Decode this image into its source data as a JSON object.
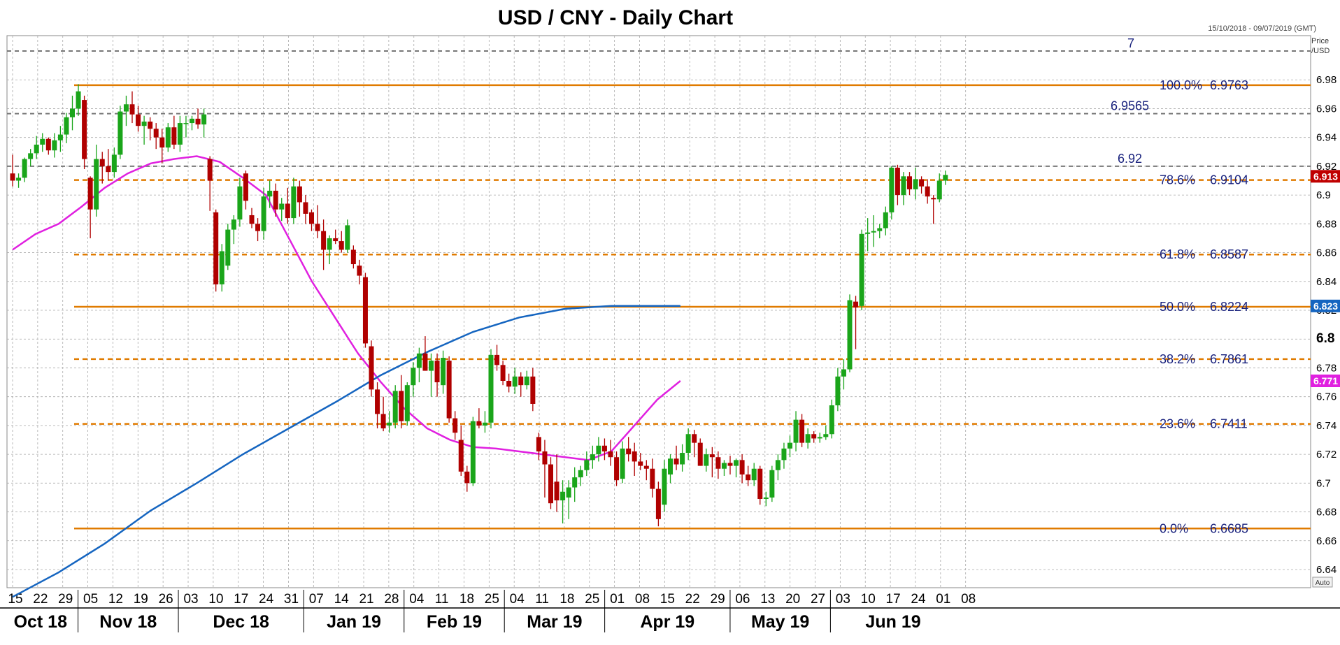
{
  "chart_data": {
    "type": "candlestick",
    "title": "USD / CNY - Daily Chart",
    "date_range": "15/10/2018 - 09/07/2019 (GMT)",
    "price_axis_label": [
      "Price",
      "/USD"
    ],
    "auto_label": "Auto",
    "ylim": [
      6.63,
      7.0
    ],
    "yticks": [
      "6.98",
      "6.96",
      "6.94",
      "6.92",
      "6.9",
      "6.88",
      "6.86",
      "6.84",
      "6.82",
      "6.8",
      "6.78",
      "6.76",
      "6.74",
      "6.72",
      "6.7",
      "6.68",
      "6.66",
      "6.64"
    ],
    "x_day_labels": [
      "15",
      "22",
      "29",
      "05",
      "12",
      "19",
      "26",
      "03",
      "10",
      "17",
      "24",
      "31",
      "07",
      "14",
      "21",
      "28",
      "04",
      "11",
      "18",
      "25",
      "04",
      "11",
      "18",
      "25",
      "01",
      "08",
      "15",
      "22",
      "29",
      "06",
      "13",
      "20",
      "27",
      "03",
      "10",
      "17",
      "24",
      "01",
      "08"
    ],
    "x_month_labels": [
      "Oct 18",
      "Nov 18",
      "Dec 18",
      "Jan 19",
      "Feb 19",
      "Mar 19",
      "Apr 19",
      "May 19",
      "Jun 19"
    ],
    "fibonacci_levels": [
      {
        "label": "100.0%",
        "value": "6.9763"
      },
      {
        "label": "78.6%",
        "value": "6.9104"
      },
      {
        "label": "61.8%",
        "value": "6.8587"
      },
      {
        "label": "50.0%",
        "value": "6.8224"
      },
      {
        "label": "38.2%",
        "value": "6.7861"
      },
      {
        "label": "23.6%",
        "value": "6.7411"
      },
      {
        "label": "0.0%",
        "value": "6.6685"
      }
    ],
    "horizontal_levels": [
      {
        "label": "7",
        "value": "7"
      },
      {
        "label": "6.9565",
        "value": "6.9565"
      },
      {
        "label": "6.92",
        "value": "6.92"
      }
    ],
    "price_tags": [
      {
        "label": "6.913",
        "value": 6.913,
        "color": "#c00000"
      },
      {
        "label": "6.823",
        "value": 6.823,
        "color": "#1565c0"
      },
      {
        "label": "6.771",
        "value": 6.771,
        "color": "#e020e0"
      }
    ],
    "candles": [
      [
        6.915,
        6.928,
        6.906,
        6.91
      ],
      [
        6.91,
        6.915,
        6.905,
        6.912
      ],
      [
        6.912,
        6.926,
        6.909,
        6.925
      ],
      [
        6.925,
        6.932,
        6.92,
        6.929
      ],
      [
        6.929,
        6.941,
        6.925,
        6.935
      ],
      [
        6.935,
        6.943,
        6.93,
        6.939
      ],
      [
        6.939,
        6.94,
        6.928,
        6.931
      ],
      [
        6.931,
        6.943,
        6.926,
        6.938
      ],
      [
        6.938,
        6.948,
        6.93,
        6.942
      ],
      [
        6.942,
        6.957,
        6.936,
        6.954
      ],
      [
        6.954,
        6.969,
        6.945,
        6.96
      ],
      [
        6.96,
        6.977,
        6.955,
        6.972
      ],
      [
        6.966,
        6.969,
        6.918,
        6.925
      ],
      [
        6.912,
        6.913,
        6.87,
        6.89
      ],
      [
        6.89,
        6.935,
        6.885,
        6.925
      ],
      [
        6.925,
        6.93,
        6.908,
        6.92
      ],
      [
        6.92,
        6.932,
        6.91,
        6.916
      ],
      [
        6.916,
        6.933,
        6.912,
        6.928
      ],
      [
        6.928,
        6.962,
        6.925,
        6.958
      ],
      [
        6.958,
        6.969,
        6.948,
        6.963
      ],
      [
        6.963,
        6.972,
        6.95,
        6.956
      ],
      [
        6.956,
        6.962,
        6.944,
        6.948
      ],
      [
        6.948,
        6.955,
        6.935,
        6.951
      ],
      [
        6.951,
        6.954,
        6.938,
        6.946
      ],
      [
        6.946,
        6.95,
        6.932,
        6.94
      ],
      [
        6.94,
        6.946,
        6.922,
        6.933
      ],
      [
        6.933,
        6.95,
        6.93,
        6.947
      ],
      [
        6.947,
        6.955,
        6.932,
        6.935
      ],
      [
        6.935,
        6.955,
        6.93,
        6.95
      ],
      [
        6.95,
        6.955,
        6.94,
        6.95
      ],
      [
        6.95,
        6.955,
        6.945,
        6.953
      ],
      [
        6.953,
        6.96,
        6.946,
        6.949
      ],
      [
        6.949,
        6.96,
        6.94,
        6.956
      ],
      [
        6.925,
        6.927,
        6.889,
        6.91
      ],
      [
        6.888,
        6.89,
        6.833,
        6.838
      ],
      [
        6.838,
        6.866,
        6.833,
        6.861
      ],
      [
        6.851,
        6.88,
        6.848,
        6.876
      ],
      [
        6.876,
        6.886,
        6.866,
        6.883
      ],
      [
        6.883,
        6.912,
        6.878,
        6.906
      ],
      [
        6.915,
        6.917,
        6.89,
        6.896
      ],
      [
        6.886,
        6.891,
        6.877,
        6.88
      ],
      [
        6.88,
        6.884,
        6.868,
        6.875
      ],
      [
        6.875,
        6.905,
        6.869,
        6.899
      ],
      [
        6.899,
        6.91,
        6.891,
        6.903
      ],
      [
        6.903,
        6.908,
        6.885,
        6.89
      ],
      [
        6.89,
        6.898,
        6.882,
        6.894
      ],
      [
        6.894,
        6.905,
        6.88,
        6.884
      ],
      [
        6.884,
        6.912,
        6.88,
        6.906
      ],
      [
        6.906,
        6.91,
        6.885,
        6.895
      ],
      [
        6.895,
        6.9,
        6.88,
        6.887
      ],
      [
        6.888,
        6.89,
        6.875,
        6.88
      ],
      [
        6.88,
        6.893,
        6.87,
        6.875
      ],
      [
        6.875,
        6.883,
        6.848,
        6.862
      ],
      [
        6.862,
        6.872,
        6.852,
        6.87
      ],
      [
        6.87,
        6.876,
        6.866,
        6.868
      ],
      [
        6.868,
        6.875,
        6.86,
        6.862
      ],
      [
        6.862,
        6.883,
        6.86,
        6.879
      ],
      [
        6.862,
        6.865,
        6.849,
        6.852
      ],
      [
        6.851,
        6.855,
        6.838,
        6.844
      ],
      [
        6.843,
        6.846,
        6.794,
        6.797
      ],
      [
        6.795,
        6.799,
        6.76,
        6.765
      ],
      [
        6.765,
        6.77,
        6.738,
        6.748
      ],
      [
        6.748,
        6.76,
        6.736,
        6.738
      ],
      [
        6.74,
        6.75,
        6.735,
        6.742
      ],
      [
        6.742,
        6.768,
        6.738,
        6.764
      ],
      [
        6.764,
        6.775,
        6.738,
        6.743
      ],
      [
        6.743,
        6.77,
        6.74,
        6.768
      ],
      [
        6.768,
        6.784,
        6.76,
        6.78
      ],
      [
        6.78,
        6.794,
        6.77,
        6.79
      ],
      [
        6.79,
        6.802,
        6.778,
        6.778
      ],
      [
        6.778,
        6.79,
        6.76,
        6.785
      ],
      [
        6.785,
        6.79,
        6.76,
        6.77
      ],
      [
        6.768,
        6.792,
        6.762,
        6.787
      ],
      [
        6.785,
        6.788,
        6.742,
        6.745
      ],
      [
        6.745,
        6.75,
        6.73,
        6.735
      ],
      [
        6.73,
        6.74,
        6.705,
        6.708
      ],
      [
        6.708,
        6.712,
        6.694,
        6.7
      ],
      [
        6.7,
        6.746,
        6.698,
        6.743
      ],
      [
        6.743,
        6.752,
        6.738,
        6.74
      ],
      [
        6.74,
        6.75,
        6.735,
        6.742
      ],
      [
        6.742,
        6.793,
        6.738,
        6.789
      ],
      [
        6.789,
        6.796,
        6.778,
        6.782
      ],
      [
        6.782,
        6.785,
        6.768,
        6.771
      ],
      [
        6.771,
        6.776,
        6.763,
        6.767
      ],
      [
        6.767,
        6.78,
        6.762,
        6.774
      ],
      [
        6.774,
        6.777,
        6.76,
        6.768
      ],
      [
        6.768,
        6.778,
        6.765,
        6.774
      ],
      [
        6.774,
        6.78,
        6.75,
        6.755
      ],
      [
        6.732,
        6.735,
        6.716,
        6.722
      ],
      [
        6.722,
        6.73,
        6.69,
        6.713
      ],
      [
        6.713,
        6.718,
        6.682,
        6.686
      ],
      [
        6.701,
        6.72,
        6.68,
        6.688
      ],
      [
        6.688,
        6.702,
        6.672,
        6.694
      ],
      [
        6.69,
        6.702,
        6.675,
        6.697
      ],
      [
        6.697,
        6.711,
        6.687,
        6.704
      ],
      [
        6.704,
        6.712,
        6.698,
        6.709
      ],
      [
        6.709,
        6.722,
        6.705,
        6.716
      ],
      [
        6.716,
        6.726,
        6.71,
        6.72
      ],
      [
        6.72,
        6.732,
        6.715,
        6.726
      ],
      [
        6.726,
        6.731,
        6.716,
        6.722
      ],
      [
        6.722,
        6.73,
        6.712,
        6.718
      ],
      [
        6.718,
        6.722,
        6.698,
        6.702
      ],
      [
        6.703,
        6.729,
        6.7,
        6.724
      ],
      [
        6.724,
        6.732,
        6.715,
        6.72
      ],
      [
        6.722,
        6.728,
        6.705,
        6.715
      ],
      [
        6.715,
        6.721,
        6.709,
        6.712
      ],
      [
        6.712,
        6.716,
        6.702,
        6.71
      ],
      [
        6.71,
        6.717,
        6.69,
        6.696
      ],
      [
        6.696,
        6.701,
        6.67,
        6.675
      ],
      [
        6.685,
        6.716,
        6.68,
        6.71
      ],
      [
        6.706,
        6.72,
        6.7,
        6.717
      ],
      [
        6.717,
        6.726,
        6.709,
        6.713
      ],
      [
        6.713,
        6.727,
        6.708,
        6.721
      ],
      [
        6.721,
        6.738,
        6.716,
        6.734
      ],
      [
        6.734,
        6.737,
        6.718,
        6.728
      ],
      [
        6.728,
        6.731,
        6.712,
        6.712
      ],
      [
        6.712,
        6.724,
        6.708,
        6.72
      ],
      [
        6.72,
        6.725,
        6.704,
        6.718
      ],
      [
        6.718,
        6.722,
        6.703,
        6.71
      ],
      [
        6.71,
        6.716,
        6.705,
        6.714
      ],
      [
        6.714,
        6.719,
        6.706,
        6.712
      ],
      [
        6.712,
        6.717,
        6.704,
        6.716
      ],
      [
        6.716,
        6.72,
        6.7,
        6.706
      ],
      [
        6.706,
        6.712,
        6.698,
        6.702
      ],
      [
        6.702,
        6.714,
        6.698,
        6.71
      ],
      [
        6.71,
        6.712,
        6.685,
        6.689
      ],
      [
        6.689,
        6.694,
        6.684,
        6.69
      ],
      [
        6.69,
        6.712,
        6.687,
        6.709
      ],
      [
        6.709,
        6.72,
        6.702,
        6.716
      ],
      [
        6.716,
        6.728,
        6.71,
        6.724
      ],
      [
        6.724,
        6.733,
        6.718,
        6.728
      ],
      [
        6.728,
        6.75,
        6.722,
        6.744
      ],
      [
        6.744,
        6.748,
        6.725,
        6.728
      ],
      [
        6.728,
        6.738,
        6.724,
        6.734
      ],
      [
        6.734,
        6.736,
        6.728,
        6.731
      ],
      [
        6.731,
        6.735,
        6.728,
        6.732
      ],
      [
        6.732,
        6.74,
        6.73,
        6.734
      ],
      [
        6.734,
        6.758,
        6.731,
        6.754
      ],
      [
        6.754,
        6.78,
        6.75,
        6.774
      ],
      [
        6.774,
        6.786,
        6.765,
        6.779
      ],
      [
        6.779,
        6.831,
        6.777,
        6.827
      ],
      [
        6.826,
        6.83,
        6.793,
        6.822
      ],
      [
        6.823,
        6.876,
        6.82,
        6.873
      ],
      [
        6.873,
        6.884,
        6.861,
        6.874
      ],
      [
        6.874,
        6.886,
        6.864,
        6.875
      ],
      [
        6.875,
        6.88,
        6.87,
        6.877
      ],
      [
        6.877,
        6.892,
        6.872,
        6.888
      ],
      [
        6.888,
        6.92,
        6.883,
        6.919
      ],
      [
        6.919,
        6.921,
        6.893,
        6.9
      ],
      [
        6.9,
        6.916,
        6.893,
        6.913
      ],
      [
        6.913,
        6.916,
        6.9,
        6.904
      ],
      [
        6.904,
        6.919,
        6.897,
        6.911
      ],
      [
        6.911,
        6.913,
        6.901,
        6.906
      ],
      [
        6.906,
        6.911,
        6.894,
        6.899
      ],
      [
        6.898,
        6.9,
        6.88,
        6.897
      ],
      [
        6.897,
        6.915,
        6.895,
        6.91
      ],
      [
        6.91,
        6.917,
        6.907,
        6.914
      ]
    ],
    "sma_magenta": [
      [
        0,
        6.862
      ],
      [
        10,
        6.873
      ],
      [
        20,
        6.88
      ],
      [
        30,
        6.892
      ],
      [
        40,
        6.905
      ],
      [
        50,
        6.915
      ],
      [
        60,
        6.922
      ],
      [
        70,
        6.925
      ],
      [
        80,
        6.927
      ],
      [
        90,
        6.923
      ],
      [
        100,
        6.912
      ],
      [
        110,
        6.9
      ],
      [
        120,
        6.87
      ],
      [
        130,
        6.84
      ],
      [
        140,
        6.815
      ],
      [
        150,
        6.79
      ],
      [
        160,
        6.77
      ],
      [
        170,
        6.752
      ],
      [
        180,
        6.738
      ],
      [
        190,
        6.73
      ],
      [
        200,
        6.725
      ],
      [
        210,
        6.724
      ],
      [
        220,
        6.722
      ],
      [
        230,
        6.72
      ],
      [
        240,
        6.718
      ],
      [
        250,
        6.716
      ],
      [
        260,
        6.722
      ],
      [
        270,
        6.74
      ],
      [
        280,
        6.758
      ],
      [
        290,
        6.771
      ]
    ],
    "sma_blue": [
      [
        0,
        6.621
      ],
      [
        20,
        6.638
      ],
      [
        40,
        6.658
      ],
      [
        60,
        6.681
      ],
      [
        80,
        6.7
      ],
      [
        100,
        6.72
      ],
      [
        120,
        6.738
      ],
      [
        140,
        6.756
      ],
      [
        160,
        6.775
      ],
      [
        180,
        6.791
      ],
      [
        200,
        6.805
      ],
      [
        220,
        6.815
      ],
      [
        240,
        6.821
      ],
      [
        260,
        6.823
      ],
      [
        280,
        6.823
      ],
      [
        290,
        6.823
      ]
    ]
  }
}
